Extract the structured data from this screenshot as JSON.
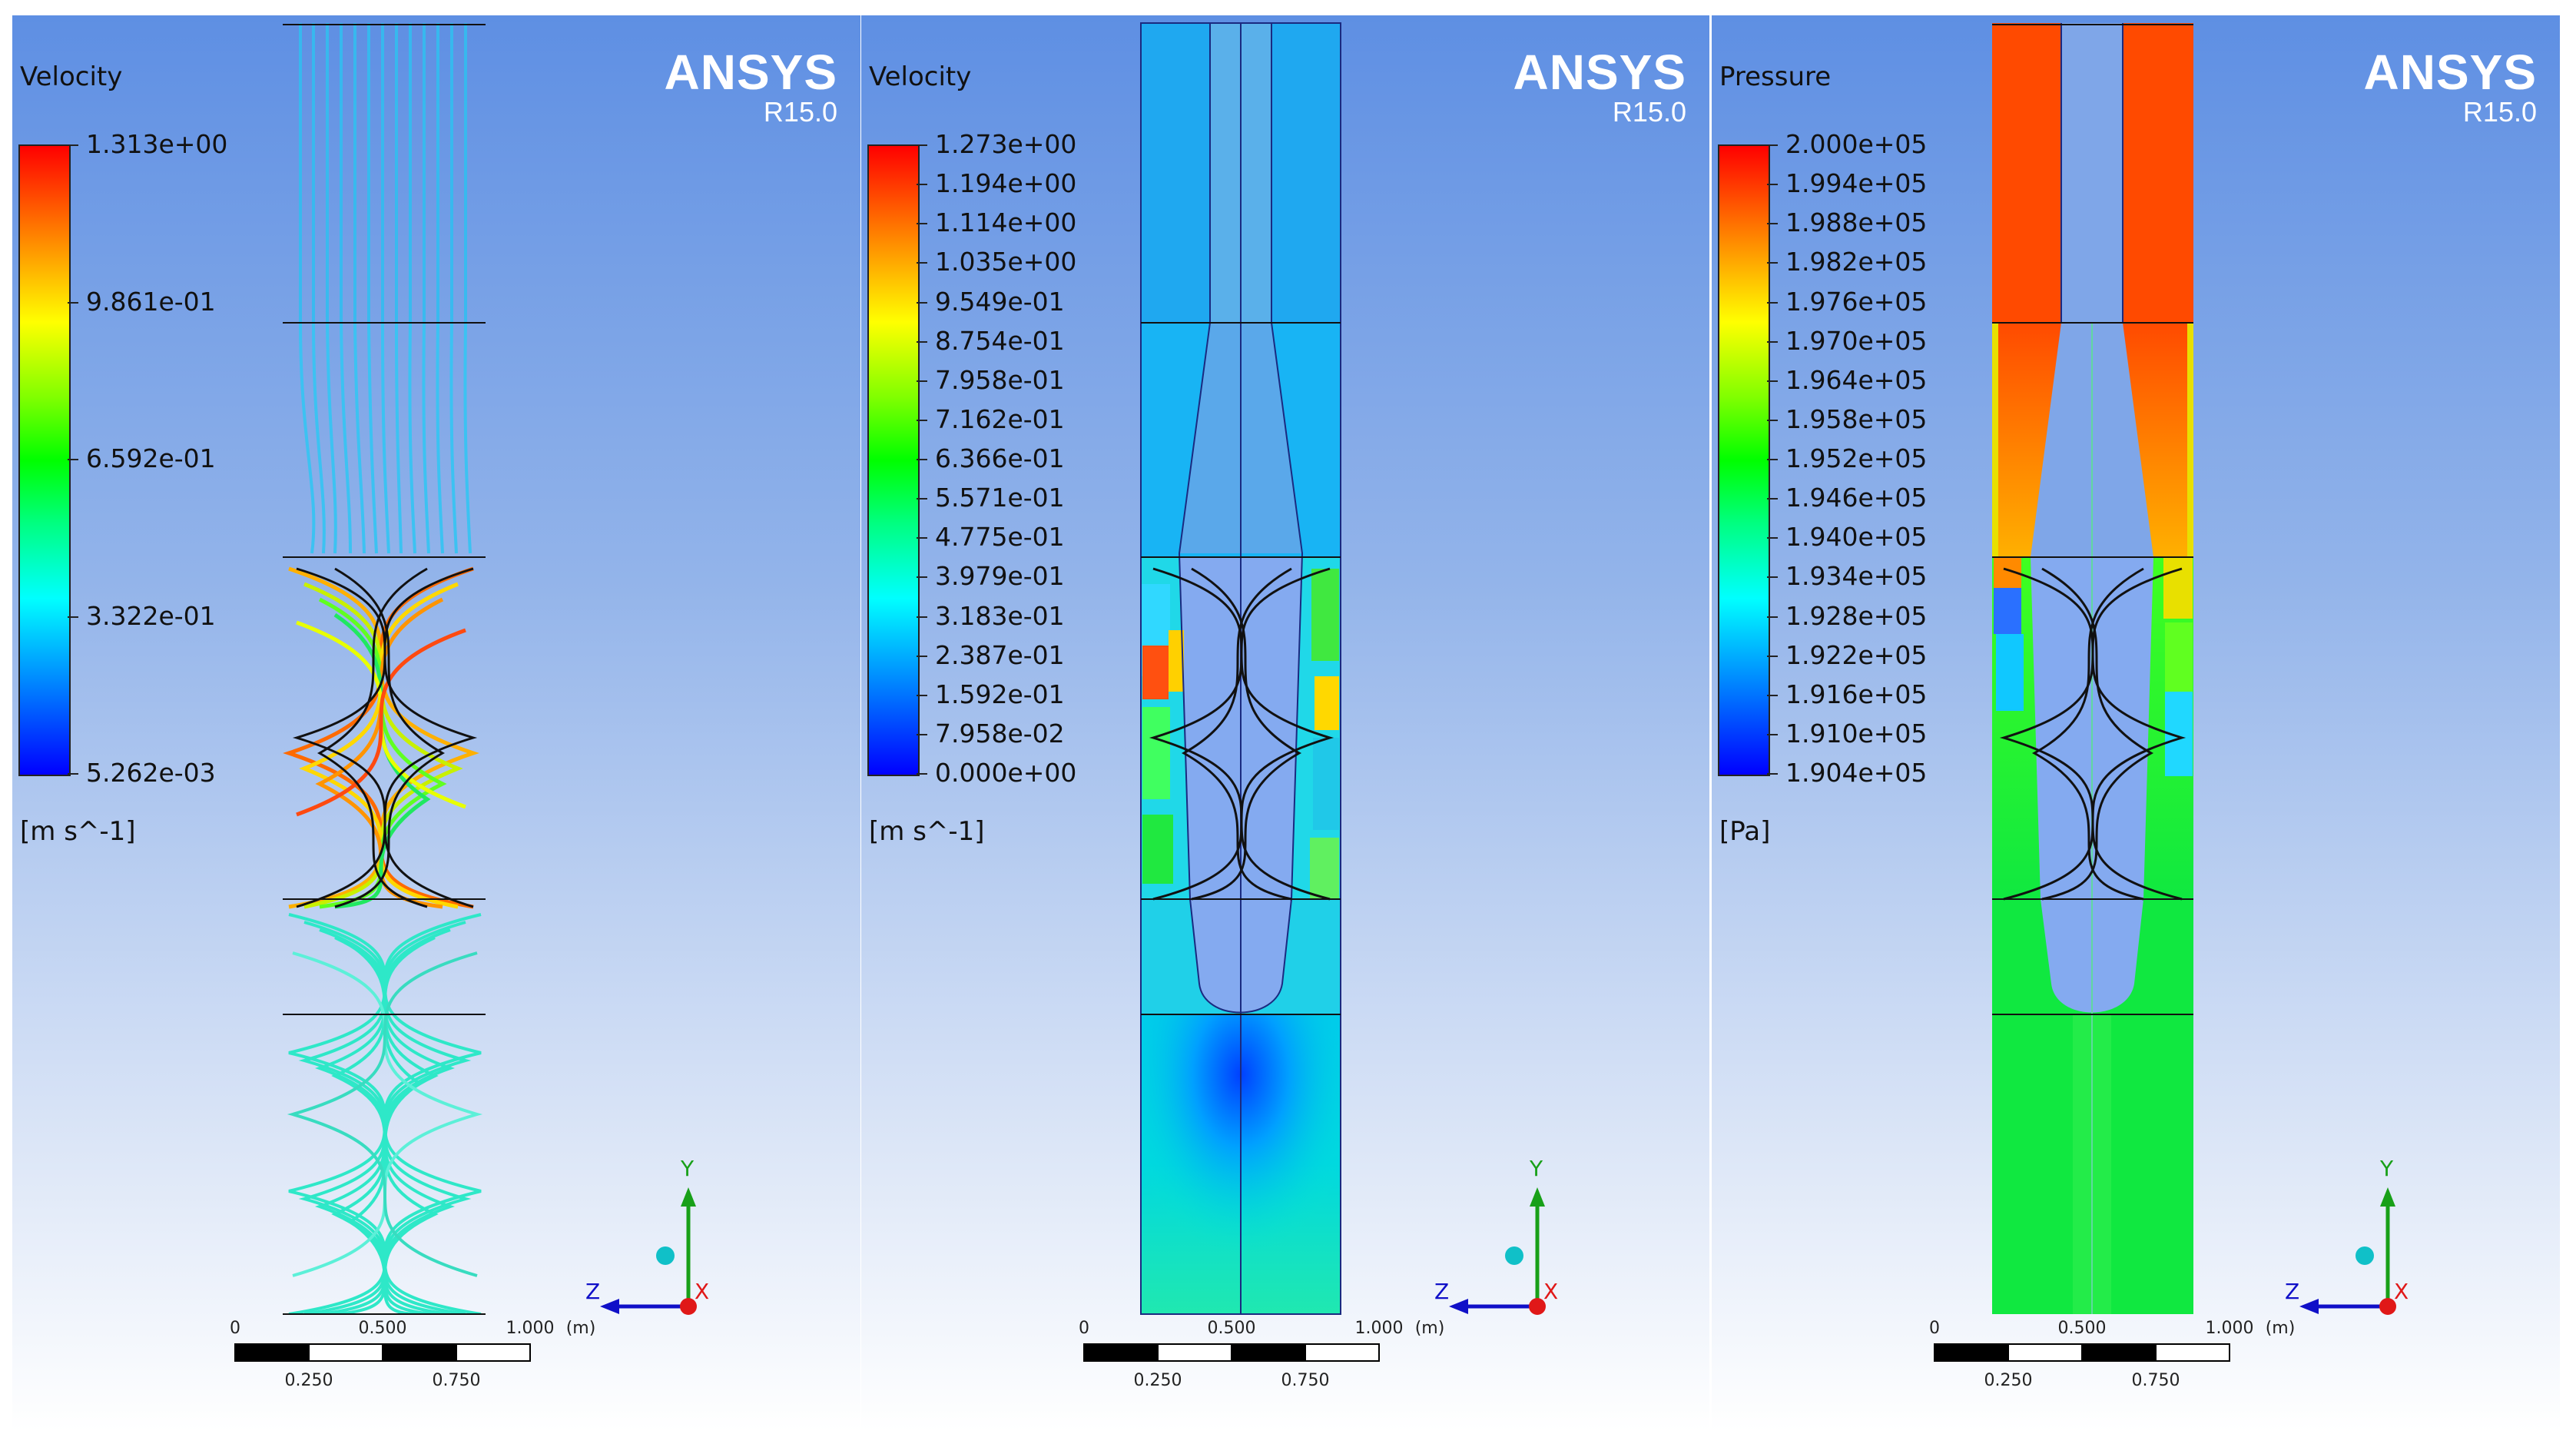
{
  "panels": [
    {
      "variable": "Velocity",
      "units": "[m s^-1]",
      "logo": {
        "brand": "ANSYS",
        "version": "R15.0"
      },
      "legend_ticks": [
        "1.313e+00",
        "9.861e-01",
        "6.592e-01",
        "3.322e-01",
        "5.262e-03"
      ],
      "view": "streamlines",
      "triad": {
        "y": "Y",
        "z": "Z",
        "x": "X"
      },
      "scale": {
        "top": [
          "0",
          "0.500",
          "1.000",
          "(m)"
        ],
        "bottom": [
          "0.250",
          "0.750"
        ]
      }
    },
    {
      "variable": "Velocity",
      "units": "[m s^-1]",
      "logo": {
        "brand": "ANSYS",
        "version": "R15.0"
      },
      "legend_ticks": [
        "1.273e+00",
        "1.194e+00",
        "1.114e+00",
        "1.035e+00",
        "9.549e-01",
        "8.754e-01",
        "7.958e-01",
        "7.162e-01",
        "6.366e-01",
        "5.571e-01",
        "4.775e-01",
        "3.979e-01",
        "3.183e-01",
        "2.387e-01",
        "1.592e-01",
        "7.958e-02",
        "0.000e+00"
      ],
      "view": "contour",
      "triad": {
        "y": "Y",
        "z": "Z",
        "x": "X"
      },
      "scale": {
        "top": [
          "0",
          "0.500",
          "1.000",
          "(m)"
        ],
        "bottom": [
          "0.250",
          "0.750"
        ]
      }
    },
    {
      "variable": "Pressure",
      "units": "[Pa]",
      "logo": {
        "brand": "ANSYS",
        "version": "R15.0"
      },
      "legend_ticks": [
        "2.000e+05",
        "1.994e+05",
        "1.988e+05",
        "1.982e+05",
        "1.976e+05",
        "1.970e+05",
        "1.964e+05",
        "1.958e+05",
        "1.952e+05",
        "1.946e+05",
        "1.940e+05",
        "1.934e+05",
        "1.928e+05",
        "1.922e+05",
        "1.916e+05",
        "1.910e+05",
        "1.904e+05"
      ],
      "view": "contour",
      "triad": {
        "y": "Y",
        "z": "Z",
        "x": "X"
      },
      "scale": {
        "top": [
          "0",
          "0.500",
          "1.000",
          "(m)"
        ],
        "bottom": [
          "0.250",
          "0.750"
        ]
      }
    }
  ],
  "colors": {
    "background_top": "#5e8fe3",
    "background_bottom": "#ffffff",
    "logo": "#ffffff",
    "wire": "#1a2a80"
  }
}
